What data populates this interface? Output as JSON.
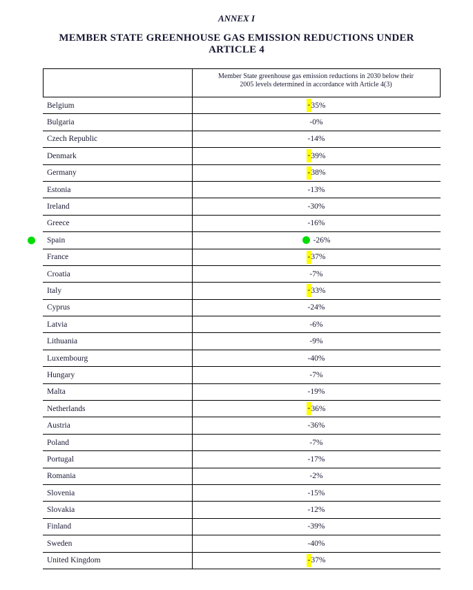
{
  "page": {
    "annex_label": "ANNEX I",
    "title_line1": "MEMBER STATE GREENHOUSE GAS EMISSION REDUCTIONS UNDER",
    "title_line2": "ARTICLE 4"
  },
  "table": {
    "column_header": {
      "line1": "Member State greenhouse gas emission reductions in 2030 below their",
      "line2": "2005 levels determined in accordance with Article 4(3)"
    },
    "rows": [
      {
        "country": "Belgium",
        "value": "-35%",
        "highlight_minus": true,
        "value_dot": false,
        "margin_dot": false
      },
      {
        "country": "Bulgaria",
        "value": "-0%",
        "highlight_minus": false,
        "value_dot": false,
        "margin_dot": false
      },
      {
        "country": "Czech Republic",
        "value": "-14%",
        "highlight_minus": false,
        "value_dot": false,
        "margin_dot": false
      },
      {
        "country": "Denmark",
        "value": "-39%",
        "highlight_minus": true,
        "value_dot": false,
        "margin_dot": false
      },
      {
        "country": "Germany",
        "value": "-38%",
        "highlight_minus": true,
        "value_dot": false,
        "margin_dot": false
      },
      {
        "country": "Estonia",
        "value": "-13%",
        "highlight_minus": false,
        "value_dot": false,
        "margin_dot": false
      },
      {
        "country": "Ireland",
        "value": "-30%",
        "highlight_minus": false,
        "value_dot": false,
        "margin_dot": false
      },
      {
        "country": "Greece",
        "value": "-16%",
        "highlight_minus": false,
        "value_dot": false,
        "margin_dot": false
      },
      {
        "country": "Spain",
        "value": "-26%",
        "highlight_minus": false,
        "value_dot": true,
        "margin_dot": true
      },
      {
        "country": "France",
        "value": "-37%",
        "highlight_minus": true,
        "value_dot": false,
        "margin_dot": false
      },
      {
        "country": "Croatia",
        "value": "-7%",
        "highlight_minus": false,
        "value_dot": false,
        "margin_dot": false
      },
      {
        "country": "Italy",
        "value": "-33%",
        "highlight_minus": true,
        "value_dot": false,
        "margin_dot": false
      },
      {
        "country": "Cyprus",
        "value": "-24%",
        "highlight_minus": false,
        "value_dot": false,
        "margin_dot": false
      },
      {
        "country": "Latvia",
        "value": "-6%",
        "highlight_minus": false,
        "value_dot": false,
        "margin_dot": false
      },
      {
        "country": "Lithuania",
        "value": "-9%",
        "highlight_minus": false,
        "value_dot": false,
        "margin_dot": false
      },
      {
        "country": "Luxembourg",
        "value": "-40%",
        "highlight_minus": false,
        "value_dot": false,
        "margin_dot": false
      },
      {
        "country": "Hungary",
        "value": "-7%",
        "highlight_minus": false,
        "value_dot": false,
        "margin_dot": false
      },
      {
        "country": "Malta",
        "value": "-19%",
        "highlight_minus": false,
        "value_dot": false,
        "margin_dot": false
      },
      {
        "country": "Netherlands",
        "value": "-36%",
        "highlight_minus": true,
        "value_dot": false,
        "margin_dot": false
      },
      {
        "country": "Austria",
        "value": "-36%",
        "highlight_minus": false,
        "value_dot": false,
        "margin_dot": false
      },
      {
        "country": "Poland",
        "value": "-7%",
        "highlight_minus": false,
        "value_dot": false,
        "margin_dot": false
      },
      {
        "country": "Portugal",
        "value": "-17%",
        "highlight_minus": false,
        "value_dot": false,
        "margin_dot": false
      },
      {
        "country": "Romania",
        "value": "-2%",
        "highlight_minus": false,
        "value_dot": false,
        "margin_dot": false
      },
      {
        "country": "Slovenia",
        "value": "-15%",
        "highlight_minus": false,
        "value_dot": false,
        "margin_dot": false
      },
      {
        "country": "Slovakia",
        "value": "-12%",
        "highlight_minus": false,
        "value_dot": false,
        "margin_dot": false
      },
      {
        "country": "Finland",
        "value": "-39%",
        "highlight_minus": false,
        "value_dot": false,
        "margin_dot": false
      },
      {
        "country": "Sweden",
        "value": "-40%",
        "highlight_minus": false,
        "value_dot": false,
        "margin_dot": false
      },
      {
        "country": "United Kingdom",
        "value": "-37%",
        "highlight_minus": true,
        "value_dot": false,
        "margin_dot": false
      }
    ]
  },
  "colors": {
    "highlight_yellow": "#ffff00",
    "marker_green": "#00dd00",
    "text": "#191933",
    "border": "#000000"
  }
}
